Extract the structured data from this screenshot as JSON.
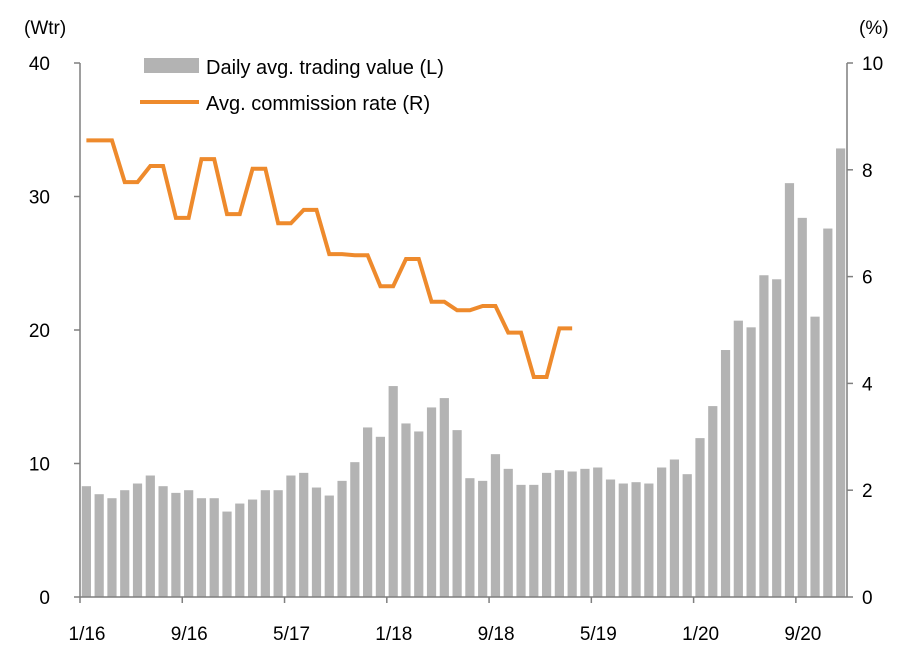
{
  "chart_data": {
    "type": "bar+line",
    "left_unit": "(Wtr)",
    "right_unit": "(%)",
    "left_ylim": [
      0,
      40
    ],
    "right_ylim": [
      0,
      10
    ],
    "left_ticks": [
      "0",
      "10",
      "20",
      "30",
      "40"
    ],
    "right_ticks": [
      "0",
      "2",
      "4",
      "6",
      "8",
      "10"
    ],
    "x_tick_labels": [
      {
        "label": "1/16",
        "index": 0
      },
      {
        "label": "9/16",
        "index": 8
      },
      {
        "label": "5/17",
        "index": 16
      },
      {
        "label": "1/18",
        "index": 24
      },
      {
        "label": "9/18",
        "index": 32
      },
      {
        "label": "5/19",
        "index": 40
      },
      {
        "label": "1/20",
        "index": 48
      },
      {
        "label": "9/20",
        "index": 56
      }
    ],
    "series": [
      {
        "name": "Daily avg. trading value (L)",
        "type": "bar",
        "axis": "left",
        "color": "#b3b3b3",
        "values": [
          8.3,
          7.7,
          7.4,
          8.0,
          8.5,
          9.1,
          8.3,
          7.8,
          8.0,
          7.4,
          7.4,
          6.4,
          7.0,
          7.3,
          8.0,
          8.0,
          9.1,
          9.3,
          8.2,
          7.6,
          8.7,
          10.1,
          12.7,
          12.0,
          15.8,
          13.0,
          12.4,
          14.2,
          14.9,
          12.5,
          8.9,
          8.7,
          10.7,
          9.6,
          8.4,
          8.4,
          9.3,
          9.5,
          9.4,
          9.6,
          9.7,
          8.8,
          8.5,
          8.6,
          8.5,
          9.7,
          10.3,
          9.2,
          11.9,
          14.3,
          18.5,
          20.7,
          20.2,
          24.1,
          23.8,
          31.0,
          28.4,
          21.0,
          27.6,
          33.6
        ]
      },
      {
        "name": "Avg. commission rate (R)",
        "type": "line",
        "axis": "right",
        "color": "#ee8a2c",
        "values": [
          8.55,
          8.55,
          8.55,
          7.77,
          7.77,
          8.07,
          8.07,
          7.1,
          7.1,
          8.2,
          8.2,
          7.17,
          7.17,
          8.02,
          8.02,
          7.0,
          7.0,
          7.25,
          7.25,
          6.42,
          6.42,
          6.4,
          6.4,
          5.82,
          5.82,
          6.33,
          6.33,
          5.53,
          5.53,
          5.37,
          5.37,
          5.45,
          5.45,
          4.95,
          4.95,
          4.12,
          4.12,
          5.03,
          5.03
        ]
      }
    ],
    "legend_position": "top-left",
    "grid": false
  }
}
